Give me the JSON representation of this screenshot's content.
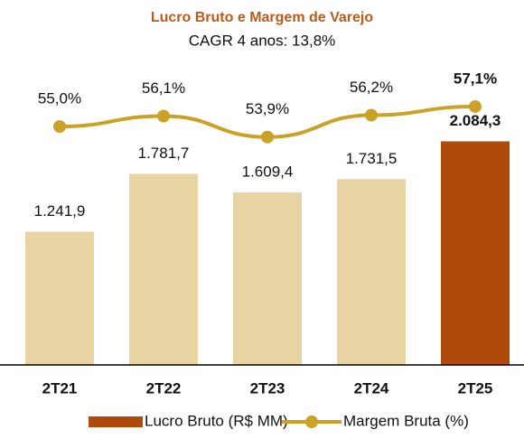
{
  "chart_data": {
    "type": "bar_line",
    "title": "Lucro Bruto e Margem de Varejo",
    "subtitle": "CAGR 4 anos: 13,8%",
    "categories": [
      "2T21",
      "2T22",
      "2T23",
      "2T24",
      "2T25"
    ],
    "series": [
      {
        "name": "Lucro Bruto (R$ MM)",
        "type": "bar",
        "color": "#b04a0a",
        "colors": [
          "#e8d4a2",
          "#e8d4a2",
          "#e8d4a2",
          "#e8d4a2",
          "#b04a0a"
        ],
        "bold": [
          false,
          false,
          false,
          false,
          true
        ],
        "values": [
          1241.9,
          1781.7,
          1609.4,
          1731.5,
          2084.3
        ],
        "value_labels": [
          "1.241,9",
          "1.781,7",
          "1.609,4",
          "1.731,5",
          "2.084,3"
        ]
      },
      {
        "name": "Margem Bruta (%)",
        "type": "line",
        "axis": "y2",
        "color": "#c9a227",
        "bold": [
          false,
          false,
          false,
          false,
          true
        ],
        "values": [
          55.0,
          56.1,
          53.9,
          56.2,
          57.1
        ],
        "value_labels": [
          "55,0%",
          "56,1%",
          "53,9%",
          "56,2%",
          "57,1%"
        ]
      }
    ],
    "ylim": [
      0,
      2400
    ],
    "y2lim": [
      30,
      57
    ],
    "title_color": "#b85c1c"
  }
}
